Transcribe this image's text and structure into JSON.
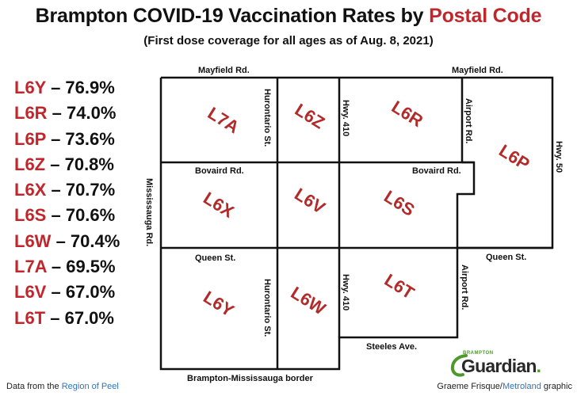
{
  "header": {
    "title_prefix": "Brampton COVID-19 Vaccination Rates by ",
    "title_accent": "Postal Code",
    "subtitle": "(First dose coverage for all ages as of Aug. 8, 2021)"
  },
  "rates": [
    {
      "code": "L6Y",
      "value": "76.9%"
    },
    {
      "code": "L6R",
      "value": "74.0%"
    },
    {
      "code": "L6P",
      "value": "73.6%"
    },
    {
      "code": "L6Z",
      "value": "70.8%"
    },
    {
      "code": "L6X",
      "value": "70.7%"
    },
    {
      "code": "L6S",
      "value": "70.6%"
    },
    {
      "code": "L6W",
      "value": "70.4%"
    },
    {
      "code": "L7A",
      "value": "69.5%"
    },
    {
      "code": "L6V",
      "value": "67.0%"
    },
    {
      "code": "L6T",
      "value": "67.0%"
    }
  ],
  "separator": " – ",
  "map": {
    "roads": {
      "mayfield_left": "Mayfield Rd.",
      "mayfield_right": "Mayfield Rd.",
      "hurontario_top": "Hurontario St.",
      "hurontario_bottom": "Hurontario St.",
      "hwy410_top": "Hwy. 410",
      "hwy410_bottom": "Hwy. 410",
      "airport_top": "Airport Rd.",
      "airport_bottom": "Airport Rd.",
      "hwy50": "Hwy. 50",
      "bovaird_left": "Bovaird Rd.",
      "bovaird_right": "Bovaird Rd.",
      "queen_left": "Queen St.",
      "queen_right": "Queen St.",
      "mississauga": "Mississauga Rd.",
      "steeles": "Steeles Ave.",
      "border": "Brampton-Mississauga border"
    },
    "zones": {
      "L7A": "L7A",
      "L6Z": "L6Z",
      "L6R": "L6R",
      "L6P": "L6P",
      "L6X": "L6X",
      "L6V": "L6V",
      "L6S": "L6S",
      "L6Y": "L6Y",
      "L6W": "L6W",
      "L6T": "L6T"
    },
    "colors": {
      "boundary": "#111111",
      "zone_label": "#b22a2a",
      "accent": "#c0272d"
    }
  },
  "footer": {
    "source_prefix": "Data from the ",
    "source_link": "Region of Peel",
    "credit_prefix": "Graeme Frisque/",
    "credit_link": "Metroland",
    "credit_suffix": " graphic"
  },
  "logo": {
    "small_text": "BRAMPTON",
    "main_text": "Guardian",
    "dot": ".",
    "color": "#4d9a2a"
  }
}
